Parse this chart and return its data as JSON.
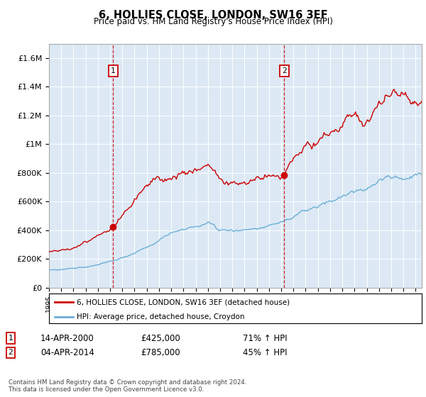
{
  "title": "6, HOLLIES CLOSE, LONDON, SW16 3EF",
  "subtitle": "Price paid vs. HM Land Registry's House Price Index (HPI)",
  "background_color": "#ffffff",
  "plot_bg_color": "#dce9f5",
  "grid_color": "#ffffff",
  "sale1_date_num": 2000.28,
  "sale1_price": 425000,
  "sale2_date_num": 2014.25,
  "sale2_price": 785000,
  "xmin": 1995,
  "xmax": 2025.5,
  "ymin": 0,
  "ymax": 1700000,
  "yticks": [
    0,
    200000,
    400000,
    600000,
    800000,
    1000000,
    1200000,
    1400000,
    1600000
  ],
  "ytick_labels": [
    "£0",
    "£200K",
    "£400K",
    "£600K",
    "£800K",
    "£1M",
    "£1.2M",
    "£1.4M",
    "£1.6M"
  ],
  "legend_label_red": "6, HOLLIES CLOSE, LONDON, SW16 3EF (detached house)",
  "legend_label_blue": "HPI: Average price, detached house, Croydon",
  "footnote": "Contains HM Land Registry data © Crown copyright and database right 2024.\nThis data is licensed under the Open Government Licence v3.0.",
  "annotation1_date": "14-APR-2000",
  "annotation1_price": "£425,000",
  "annotation1_hpi": "71% ↑ HPI",
  "annotation2_date": "04-APR-2014",
  "annotation2_price": "£785,000",
  "annotation2_hpi": "45% ↑ HPI",
  "red_color": "#cc0000",
  "blue_color": "#6baed6"
}
